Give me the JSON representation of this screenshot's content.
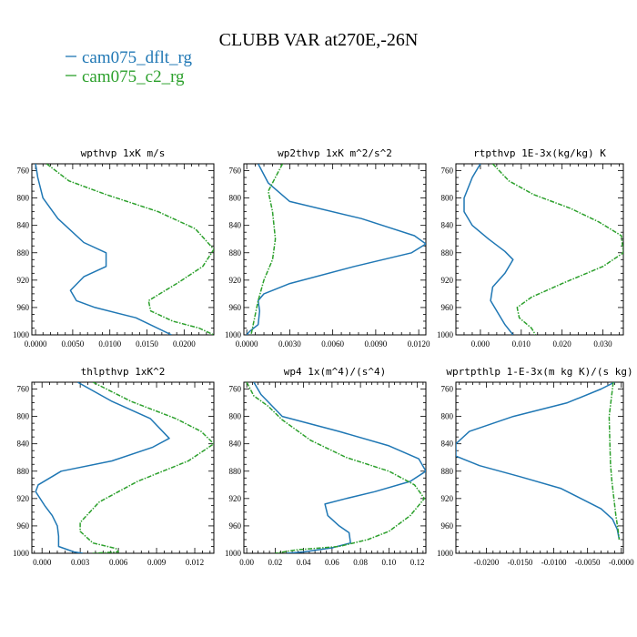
{
  "title": "CLUBB VAR at270E,-26N",
  "legend": [
    {
      "label": "cam075_dflt_rg",
      "color": "#1f77b4"
    },
    {
      "label": "cam075_c2_rg",
      "color": "#2ca02c"
    }
  ],
  "chart_data": [
    {
      "type": "line",
      "title": "wpthvp  1xK m/s",
      "xlim": [
        -0.0005,
        0.024
      ],
      "ylim": [
        750,
        1000
      ],
      "xticks": [
        "0.0000",
        "0.0050",
        "0.0100",
        "0.0150",
        "0.0200"
      ],
      "xtick_values": [
        0.0,
        0.005,
        0.01,
        0.015,
        0.02
      ],
      "yticks": [
        760,
        800,
        840,
        880,
        920,
        960,
        1000
      ],
      "series": [
        {
          "name": "cam075_dflt_rg",
          "color": "#1f77b4",
          "x": [
            0.0,
            0.0003,
            0.001,
            0.003,
            0.0065,
            0.0095,
            0.0095,
            0.0065,
            0.0047,
            0.0055,
            0.008,
            0.0135,
            0.0183
          ],
          "y": [
            750,
            770,
            800,
            830,
            865,
            880,
            900,
            915,
            935,
            950,
            960,
            975,
            1000
          ]
        },
        {
          "name": "cam075_c2_rg",
          "color": "#2ca02c",
          "x": [
            0.0015,
            0.0045,
            0.0095,
            0.0165,
            0.0215,
            0.024,
            0.0225,
            0.019,
            0.0152,
            0.0155,
            0.0185,
            0.022,
            0.024
          ],
          "y": [
            750,
            775,
            795,
            820,
            845,
            875,
            900,
            925,
            950,
            965,
            980,
            990,
            1000
          ]
        }
      ]
    },
    {
      "type": "line",
      "title": "wp2thvp  1xK m^2/s^2",
      "xlim": [
        -0.0002,
        0.0125
      ],
      "ylim": [
        750,
        1000
      ],
      "xticks": [
        "0.0000",
        "0.0030",
        "0.0060",
        "0.0090",
        "0.0120"
      ],
      "xtick_values": [
        0.0,
        0.003,
        0.006,
        0.009,
        0.012
      ],
      "yticks": [
        760,
        800,
        840,
        880,
        920,
        960,
        1000
      ],
      "series": [
        {
          "name": "cam075_dflt_rg",
          "color": "#1f77b4",
          "x": [
            0.0008,
            0.0015,
            0.003,
            0.008,
            0.0117,
            0.0125,
            0.0115,
            0.0075,
            0.003,
            0.0012,
            0.0008,
            0.0009,
            0.0008,
            0.0002,
            0.0
          ],
          "y": [
            750,
            778,
            805,
            830,
            855,
            867,
            880,
            900,
            925,
            940,
            950,
            965,
            985,
            995,
            1000
          ]
        },
        {
          "name": "cam075_c2_rg",
          "color": "#2ca02c",
          "x": [
            0.0025,
            0.002,
            0.0015,
            0.0018,
            0.002,
            0.0018,
            0.0012,
            0.0008,
            0.0005,
            0.0003
          ],
          "y": [
            750,
            770,
            790,
            820,
            860,
            890,
            920,
            950,
            980,
            1000
          ]
        }
      ]
    },
    {
      "type": "line",
      "title": "rtpthvp  1E-3x(kg/kg) K",
      "xlim": [
        -0.006,
        0.035
      ],
      "ylim": [
        750,
        1000
      ],
      "xticks": [
        "0.000",
        "0.010",
        "0.020",
        "0.030"
      ],
      "xtick_values": [
        0.0,
        0.01,
        0.02,
        0.03
      ],
      "yticks": [
        760,
        800,
        840,
        880,
        920,
        960,
        1000
      ],
      "series": [
        {
          "name": "cam075_dflt_rg",
          "color": "#1f77b4",
          "x": [
            0.0,
            -0.002,
            -0.004,
            -0.004,
            -0.002,
            0.002,
            0.006,
            0.008,
            0.006,
            0.003,
            0.0025,
            0.004,
            0.006,
            0.008
          ],
          "y": [
            750,
            770,
            800,
            820,
            840,
            860,
            878,
            890,
            910,
            930,
            950,
            965,
            985,
            1000
          ]
        },
        {
          "name": "cam075_c2_rg",
          "color": "#2ca02c",
          "x": [
            0.003,
            0.007,
            0.013,
            0.022,
            0.029,
            0.0345,
            0.035,
            0.03,
            0.02,
            0.0125,
            0.009,
            0.0095,
            0.0125,
            0.0135
          ],
          "y": [
            750,
            775,
            795,
            815,
            835,
            855,
            880,
            900,
            925,
            945,
            960,
            975,
            990,
            1000
          ]
        }
      ]
    },
    {
      "type": "line",
      "title": "thlpthvp  1xK^2",
      "xlim": [
        -0.0008,
        0.0135
      ],
      "ylim": [
        750,
        1000
      ],
      "xticks": [
        "0.000",
        "0.003",
        "0.006",
        "0.009",
        "0.012"
      ],
      "xtick_values": [
        0.0,
        0.003,
        0.006,
        0.009,
        0.012
      ],
      "yticks": [
        760,
        800,
        840,
        880,
        920,
        960,
        1000
      ],
      "series": [
        {
          "name": "cam075_dflt_rg",
          "color": "#1f77b4",
          "x": [
            0.0028,
            0.0055,
            0.0085,
            0.01,
            0.0087,
            0.0055,
            0.0015,
            -0.0003,
            -0.0005,
            0.0002,
            0.0008,
            0.0012,
            0.0013,
            0.0013,
            0.0025,
            0.0032
          ],
          "y": [
            750,
            778,
            803,
            832,
            845,
            865,
            880,
            900,
            910,
            930,
            945,
            960,
            975,
            990,
            998,
            1000
          ]
        },
        {
          "name": "cam075_c2_rg",
          "color": "#2ca02c",
          "x": [
            0.004,
            0.007,
            0.0105,
            0.0125,
            0.0135,
            0.0115,
            0.0075,
            0.0045,
            0.003,
            0.003,
            0.004,
            0.0058,
            0.006,
            0.004
          ],
          "y": [
            750,
            778,
            803,
            822,
            840,
            865,
            895,
            925,
            955,
            968,
            985,
            993,
            998,
            1000
          ]
        }
      ]
    },
    {
      "type": "line",
      "title": "wp4  1x(m^4)/(s^4)",
      "xlim": [
        -0.002,
        0.126
      ],
      "ylim": [
        750,
        1000
      ],
      "xticks": [
        "0.00",
        "0.02",
        "0.04",
        "0.06",
        "0.08",
        "0.10",
        "0.12"
      ],
      "xtick_values": [
        0.0,
        0.02,
        0.04,
        0.06,
        0.08,
        0.1,
        0.12
      ],
      "yticks": [
        760,
        800,
        840,
        880,
        920,
        960,
        1000
      ],
      "series": [
        {
          "name": "cam075_dflt_rg",
          "color": "#1f77b4",
          "x": [
            0.005,
            0.01,
            0.025,
            0.065,
            0.1,
            0.121,
            0.126,
            0.115,
            0.09,
            0.07,
            0.055,
            0.057,
            0.065,
            0.072,
            0.073,
            0.06,
            0.04,
            0.028
          ],
          "y": [
            750,
            768,
            800,
            822,
            843,
            862,
            880,
            895,
            910,
            920,
            928,
            945,
            960,
            970,
            985,
            992,
            998,
            1000
          ]
        },
        {
          "name": "cam075_c2_rg",
          "color": "#2ca02c",
          "x": [
            0.0,
            0.005,
            0.015,
            0.025,
            0.045,
            0.07,
            0.1,
            0.118,
            0.125,
            0.115,
            0.1,
            0.085,
            0.065,
            0.035,
            0.02
          ],
          "y": [
            750,
            770,
            785,
            805,
            835,
            860,
            880,
            900,
            920,
            945,
            968,
            980,
            990,
            995,
            1000
          ]
        }
      ]
    },
    {
      "type": "line",
      "title": "wprtpthlp  1-E-3x(m kg K)/(s kg)",
      "xlim": [
        -0.0245,
        0.0003
      ],
      "ylim": [
        750,
        1000
      ],
      "xticks": [
        "-0.0200",
        "-0.0150",
        "-0.0100",
        "-0.0050",
        "-0.0000"
      ],
      "xtick_values": [
        -0.02,
        -0.015,
        -0.01,
        -0.005,
        0.0
      ],
      "yticks": [
        760,
        800,
        840,
        880,
        920,
        960,
        1000
      ],
      "series": [
        {
          "name": "cam075_dflt_rg",
          "color": "#1f77b4",
          "x": [
            -0.001,
            -0.003,
            -0.008,
            -0.016,
            -0.0225,
            -0.0245,
            -0.0245,
            -0.021,
            -0.015,
            -0.009,
            -0.006,
            -0.003,
            -0.0013,
            -0.0006,
            -0.0003
          ],
          "y": [
            750,
            760,
            780,
            800,
            822,
            840,
            858,
            872,
            888,
            905,
            920,
            935,
            950,
            965,
            980
          ]
        },
        {
          "name": "cam075_c2_rg",
          "color": "#2ca02c",
          "x": [
            -0.0012,
            -0.0018,
            -0.0017,
            -0.0016,
            -0.0014,
            -0.0011,
            -0.0008,
            -0.0005,
            -0.0003
          ],
          "y": [
            750,
            800,
            840,
            870,
            895,
            920,
            945,
            965,
            980
          ]
        }
      ]
    }
  ]
}
